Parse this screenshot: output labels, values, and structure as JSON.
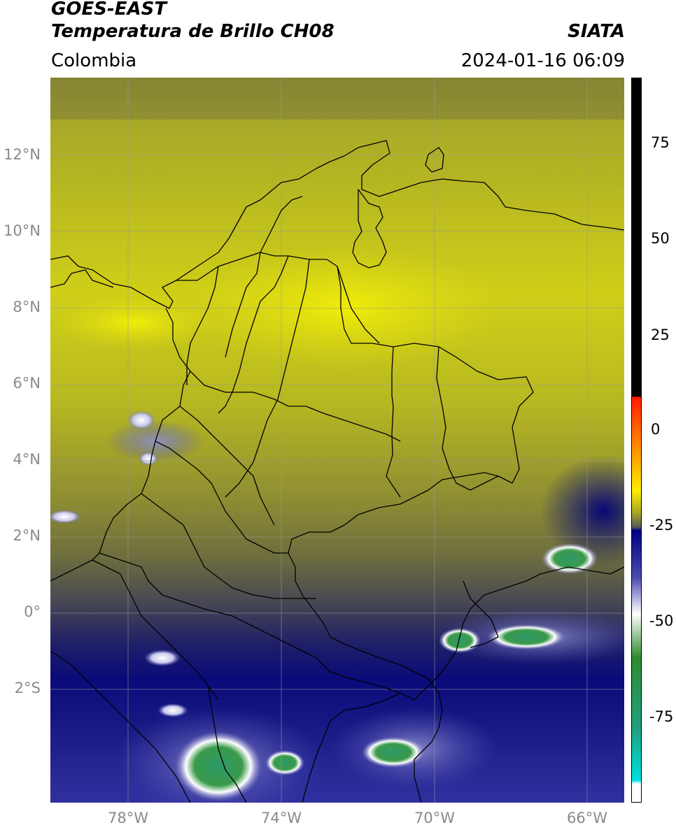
{
  "header": {
    "satellite": "GOES-EAST",
    "product": "Temperatura de Brillo CH08",
    "region": "Colombia",
    "agency": "SIATA",
    "datetime": "2024-01-16 06:09"
  },
  "map": {
    "lat_ticks": [
      "12°N",
      "10°N",
      "8°N",
      "6°N",
      "4°N",
      "2°N",
      "0°",
      "2°S"
    ],
    "lon_ticks": [
      "78°W",
      "74°W",
      "70°W",
      "66°W"
    ],
    "lon_range": [
      -79.8,
      -64.8
    ],
    "lat_range": [
      -4.8,
      14.2
    ]
  },
  "colorbar": {
    "ticks": [
      "75",
      "50",
      "25",
      "0",
      "-25",
      "-50",
      "-75"
    ],
    "colors": {
      "black": "#000000",
      "red": "#ff1a00",
      "orange": "#ff8c00",
      "yellow": "#ffee00",
      "olive": "#a6a626",
      "gray": "#5a5a5a",
      "navy": "#000080",
      "blue": "#4a4ab0",
      "white": "#ffffff",
      "green": "#2e8b2e",
      "teal": "#20a080",
      "cyan": "#00e0e0"
    }
  }
}
